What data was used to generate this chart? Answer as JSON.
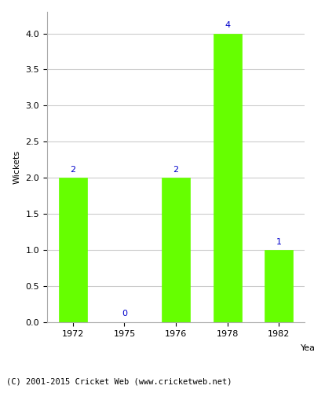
{
  "years": [
    "1972",
    "1975",
    "1976",
    "1978",
    "1982"
  ],
  "wickets": [
    2,
    0,
    2,
    4,
    1
  ],
  "bar_color": "#66ff00",
  "bar_edgecolor": "#66ff00",
  "label_color": "#0000cc",
  "ylabel": "Wickets",
  "xlabel": "Year",
  "ylim": [
    0,
    4.3
  ],
  "yticks": [
    0.0,
    0.5,
    1.0,
    1.5,
    2.0,
    2.5,
    3.0,
    3.5,
    4.0
  ],
  "grid_color": "#cccccc",
  "caption": "(C) 2001-2015 Cricket Web (www.cricketweb.net)",
  "label_fontsize": 8,
  "axis_fontsize": 8,
  "ylabel_fontsize": 8,
  "xlabel_fontsize": 8,
  "caption_fontsize": 7.5,
  "bg_color": "#ffffff"
}
